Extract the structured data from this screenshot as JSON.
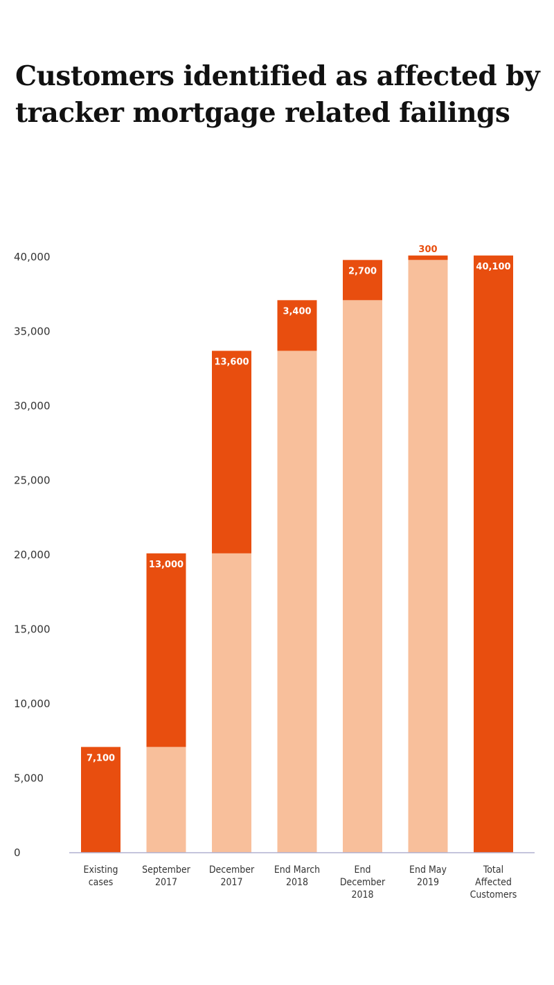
{
  "title": "Customers identified as affected by tracker mortgage related failings",
  "colors": {
    "accent": "#e84e0f",
    "base": "#f8bf9b",
    "axis": "#b0b0d0",
    "text": "#333333"
  },
  "chart_data": {
    "type": "bar",
    "stacked": true,
    "waterfall": true,
    "title": "Customers identified as affected by tracker mortgage related failings",
    "xlabel": "",
    "ylabel": "",
    "ylim": [
      0,
      40000
    ],
    "yticks": [
      "0",
      "5,000",
      "10,000",
      "15,000",
      "20,000",
      "25,000",
      "30,000",
      "35,000",
      "40,000"
    ],
    "ytick_values": [
      0,
      5000,
      10000,
      15000,
      20000,
      25000,
      30000,
      35000,
      40000
    ],
    "grid": false,
    "categories": [
      [
        "Existing",
        "cases"
      ],
      [
        "September",
        "2017"
      ],
      [
        "December",
        "2017"
      ],
      [
        "End March",
        "2018"
      ],
      [
        "End",
        "December",
        "2018"
      ],
      [
        "End May",
        "2019"
      ],
      [
        "Total",
        "Affected",
        "Customers"
      ]
    ],
    "series": [
      {
        "values": [
          0,
          7100,
          20100,
          33700,
          37100,
          39800,
          0
        ]
      },
      {
        "values": [
          7100,
          13000,
          13600,
          3400,
          2700,
          300,
          40100
        ]
      }
    ],
    "data_labels": [
      "7,100",
      "13,000",
      "13,600",
      "3,400",
      "2,700",
      "300",
      "40,100"
    ]
  }
}
